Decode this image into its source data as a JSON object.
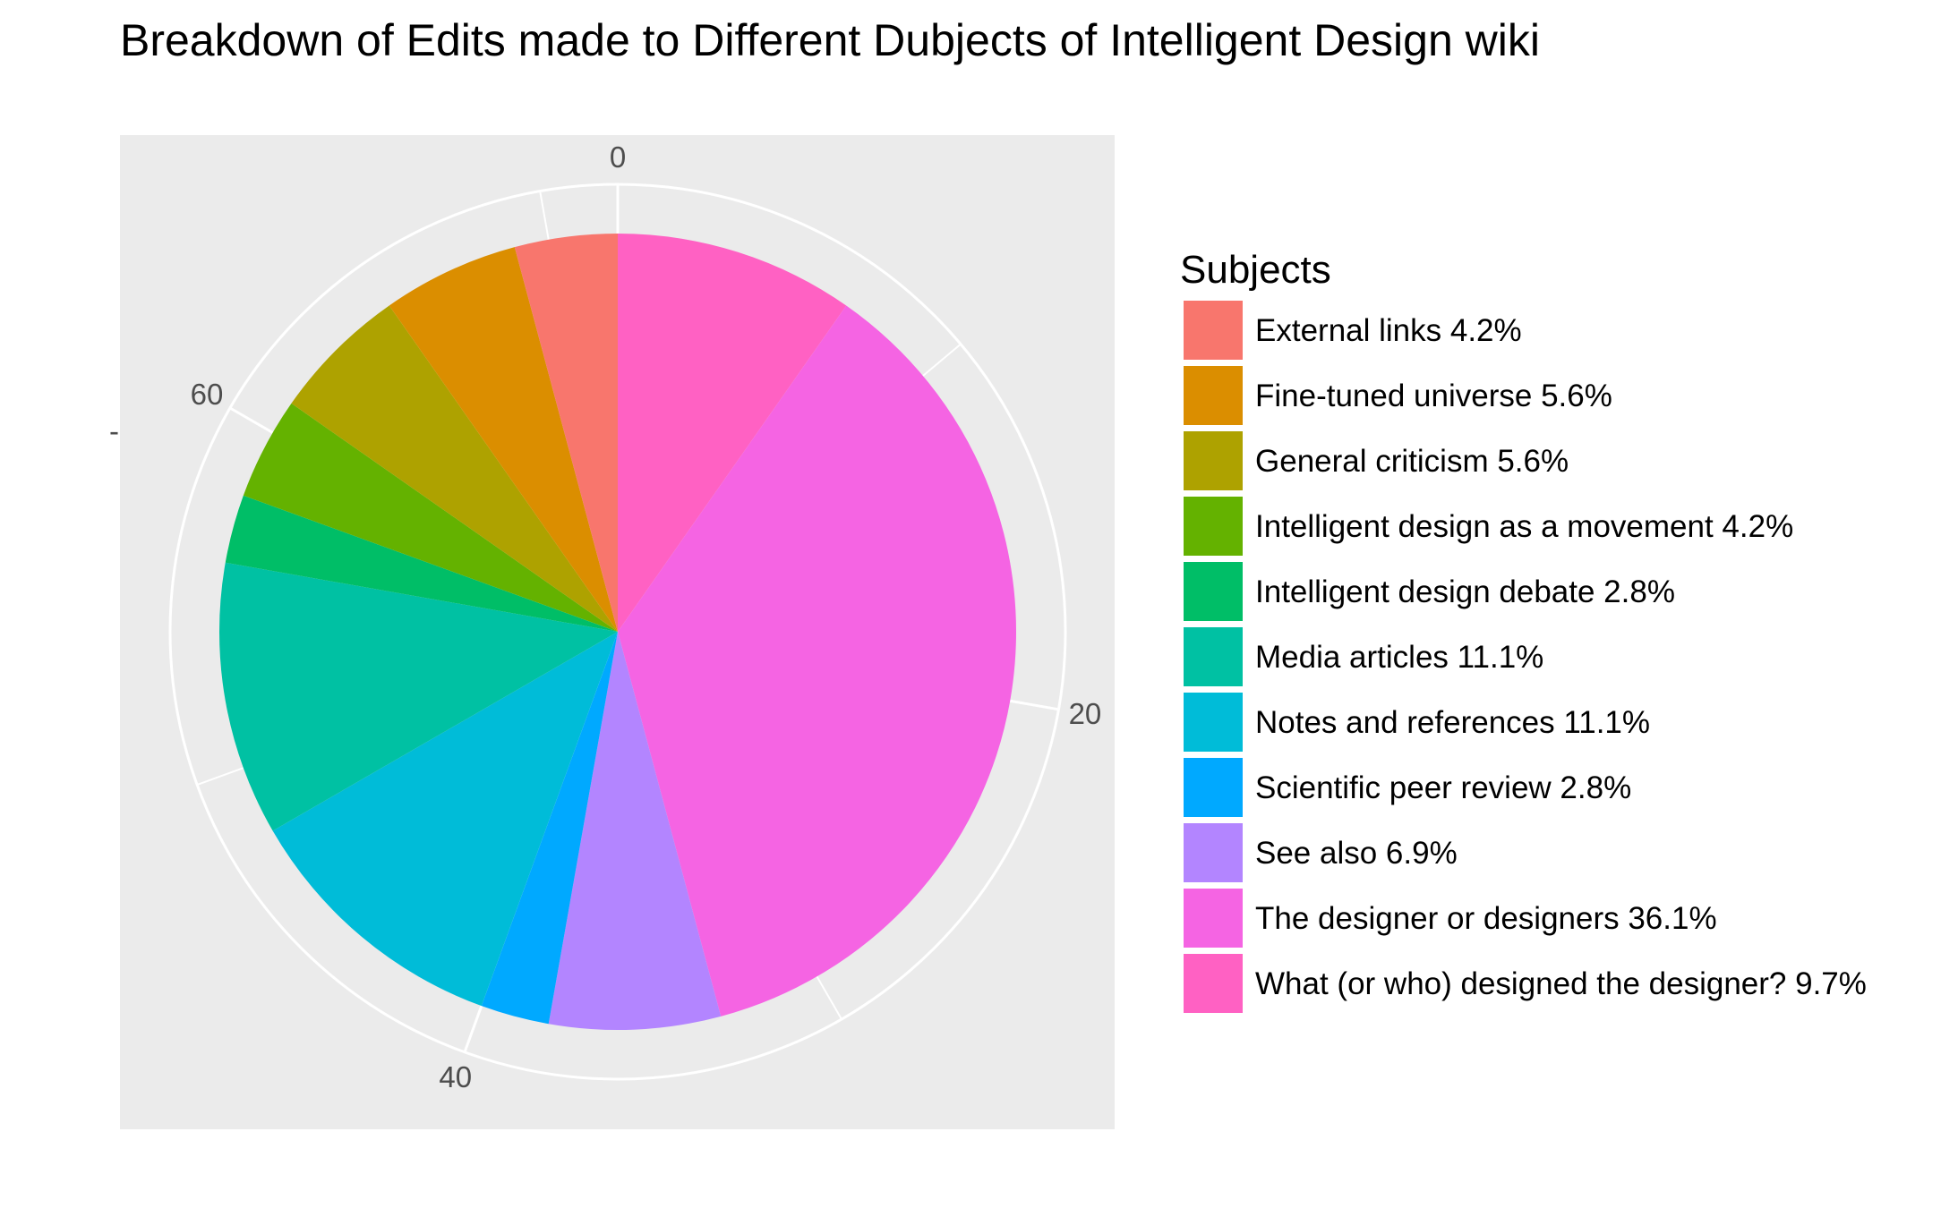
{
  "chart_data": {
    "type": "pie",
    "title": "Breakdown of Edits made to Different Dubjects of Intelligent Design wiki",
    "theta_axis": {
      "range": [
        0,
        72
      ],
      "tick_values": [
        0,
        20,
        40,
        60
      ],
      "tick_labels": [
        "0",
        "20",
        "40",
        "60"
      ],
      "direction": "clockwise",
      "start": "top"
    },
    "y_axis_stray_tick": "-",
    "legend": {
      "title": "Subjects",
      "position": "right"
    },
    "grid": true,
    "panel_background": "#ebebeb",
    "grid_color": "#ffffff",
    "slices": [
      {
        "subject": "What (or who) designed the designer?",
        "count": 7,
        "percent": "9.7%",
        "label": "What (or who) designed the designer? 9.7%",
        "color": "#FF61C3"
      },
      {
        "subject": "The designer or designers",
        "count": 26,
        "percent": "36.1%",
        "label": "The designer or designers 36.1%",
        "color": "#F564E3"
      },
      {
        "subject": "See also",
        "count": 5,
        "percent": "6.9%",
        "label": "See also 6.9%",
        "color": "#B385FF"
      },
      {
        "subject": "Scientific peer review",
        "count": 2,
        "percent": "2.8%",
        "label": "Scientific peer review 2.8%",
        "color": "#00A9FF"
      },
      {
        "subject": "Notes and references",
        "count": 8,
        "percent": "11.1%",
        "label": "Notes and references 11.1%",
        "color": "#00BCD8"
      },
      {
        "subject": "Media articles",
        "count": 8,
        "percent": "11.1%",
        "label": "Media articles 11.1%",
        "color": "#00C1A3"
      },
      {
        "subject": "Intelligent design debate",
        "count": 2,
        "percent": "2.8%",
        "label": "Intelligent design debate 2.8%",
        "color": "#00BE67"
      },
      {
        "subject": "Intelligent design as a movement",
        "count": 3,
        "percent": "4.2%",
        "label": "Intelligent design as a movement 4.2%",
        "color": "#64B200"
      },
      {
        "subject": "General criticism",
        "count": 4,
        "percent": "5.6%",
        "label": "General criticism 5.6%",
        "color": "#AEA200"
      },
      {
        "subject": "Fine-tuned universe",
        "count": 4,
        "percent": "5.6%",
        "label": "Fine-tuned universe 5.6%",
        "color": "#DB8E00"
      },
      {
        "subject": "External links",
        "count": 3,
        "percent": "4.2%",
        "label": "External links 4.2%",
        "color": "#F8766D"
      }
    ],
    "legend_order": [
      "External links 4.2%",
      "Fine-tuned universe 5.6%",
      "General criticism 5.6%",
      "Intelligent design as a movement 4.2%",
      "Intelligent design debate 2.8%",
      "Media articles 11.1%",
      "Notes and references 11.1%",
      "Scientific peer review 2.8%",
      "See also 6.9%",
      "The designer or designers 36.1%",
      "What (or who) designed the designer? 9.7%"
    ]
  }
}
